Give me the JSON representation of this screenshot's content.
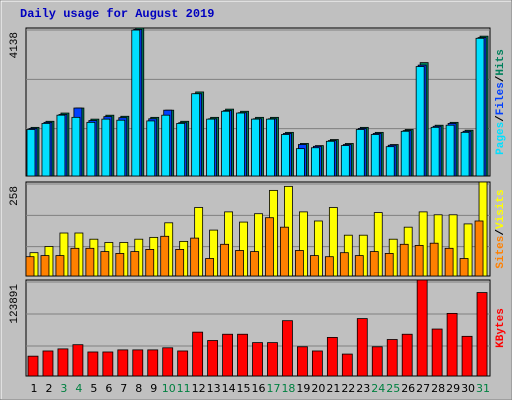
{
  "chart_data": [
    {
      "type": "bar",
      "title": "Daily usage for August 2019",
      "legend_separator": "/",
      "categories": [
        "1",
        "2",
        "3",
        "4",
        "5",
        "6",
        "7",
        "8",
        "9",
        "10",
        "11",
        "12",
        "13",
        "14",
        "15",
        "16",
        "17",
        "18",
        "19",
        "20",
        "21",
        "22",
        "23",
        "24",
        "25",
        "26",
        "27",
        "28",
        "29",
        "30",
        "31"
      ],
      "category_colors": [
        "#000000",
        "#000000",
        "#008040",
        "#008040",
        "#000000",
        "#000000",
        "#000000",
        "#000000",
        "#000000",
        "#008040",
        "#008040",
        "#000000",
        "#000000",
        "#000000",
        "#000000",
        "#000000",
        "#008040",
        "#008040",
        "#000000",
        "#000000",
        "#000000",
        "#000000",
        "#000000",
        "#008040",
        "#008040",
        "#000000",
        "#000000",
        "#000000",
        "#000000",
        "#000000",
        "#008040"
      ],
      "ylim": [
        0,
        4138
      ],
      "yticks": [
        4138
      ],
      "series": [
        {
          "name": "Pages",
          "color": "#00e0ff",
          "values": [
            1300,
            1470,
            1700,
            1640,
            1500,
            1590,
            1560,
            4080,
            1540,
            1700,
            1470,
            2300,
            1590,
            1810,
            1760,
            1590,
            1590,
            1160,
            765,
            790,
            970,
            850,
            1300,
            1160,
            820,
            1250,
            3060,
            1360,
            1420,
            1220,
            3850
          ]
        },
        {
          "name": "Files",
          "color": "#0040ff",
          "values": [
            1330,
            1500,
            1720,
            1900,
            1550,
            1660,
            1630,
            4100,
            1600,
            1840,
            1490,
            2300,
            1600,
            1830,
            1770,
            1600,
            1600,
            1190,
            880,
            830,
            990,
            880,
            1330,
            1190,
            860,
            1270,
            3100,
            1390,
            1470,
            1250,
            3870
          ]
        },
        {
          "name": "Hits",
          "color": "#00805c",
          "values": [
            1360,
            1530,
            1760,
            1900,
            1590,
            1700,
            1670,
            4138,
            1640,
            1840,
            1530,
            2350,
            1640,
            1870,
            1810,
            1640,
            1640,
            1220,
            910,
            850,
            1020,
            910,
            1360,
            1220,
            880,
            1300,
            3170,
            1420,
            1500,
            1280,
            3910
          ]
        }
      ]
    },
    {
      "type": "bar",
      "ylim": [
        0,
        258
      ],
      "yticks": [
        258
      ],
      "series": [
        {
          "name": "Sites",
          "color": "#ff8000",
          "values": [
            53,
            56,
            56,
            76,
            76,
            67,
            62,
            67,
            73,
            109,
            73,
            104,
            48,
            87,
            70,
            67,
            160,
            134,
            70,
            56,
            53,
            64,
            56,
            67,
            62,
            87,
            84,
            90,
            76,
            48,
            151
          ]
        },
        {
          "name": "Visits",
          "color": "#ffff00",
          "values": [
            64,
            81,
            118,
            118,
            101,
            92,
            92,
            101,
            106,
            146,
            95,
            188,
            126,
            176,
            148,
            171,
            235,
            246,
            176,
            151,
            188,
            112,
            112,
            174,
            101,
            134,
            176,
            168,
            168,
            143,
            258
          ]
        }
      ]
    },
    {
      "type": "bar",
      "ylim": [
        0,
        123891
      ],
      "yticks": [
        123891
      ],
      "series": [
        {
          "name": "KBytes",
          "color": "#ff0000",
          "values": [
            25600,
            32300,
            35000,
            40400,
            31000,
            31000,
            33700,
            33700,
            33700,
            36400,
            32300,
            56600,
            45800,
            53900,
            53900,
            43100,
            43100,
            71400,
            37700,
            32300,
            49800,
            28300,
            74100,
            37700,
            47100,
            53900,
            123891,
            60600,
            80800,
            51200,
            107700
          ]
        }
      ]
    }
  ]
}
